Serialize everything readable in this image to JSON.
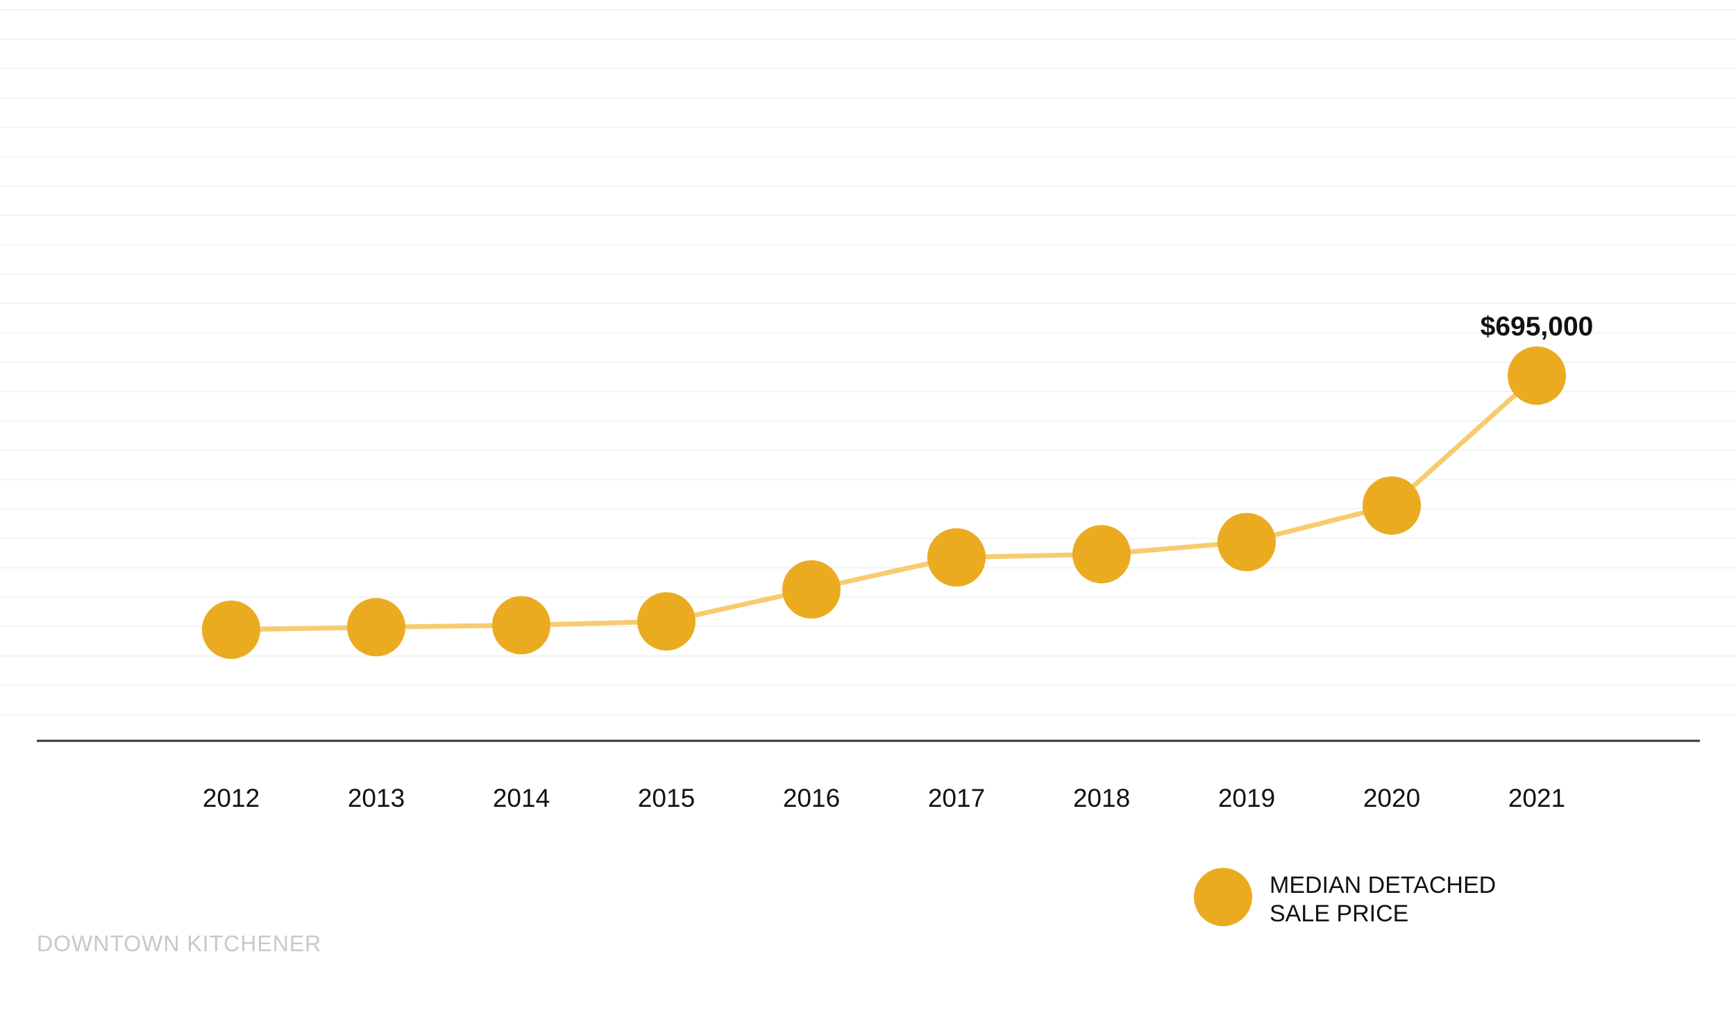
{
  "chart_data": {
    "type": "line",
    "categories": [
      "2012",
      "2013",
      "2014",
      "2015",
      "2016",
      "2017",
      "2018",
      "2019",
      "2020",
      "2021"
    ],
    "series": [
      {
        "name": "MEDIAN DETACHED SALE PRICE",
        "values": [
          298000,
          302000,
          305000,
          311000,
          361000,
          411000,
          416000,
          435000,
          492000,
          695000
        ]
      }
    ],
    "data_labels": [
      {
        "index": 9,
        "text": "$695,000"
      }
    ],
    "legend": {
      "lines": [
        "MEDIAN DETACHED",
        "SALE PRICE"
      ],
      "position": "bottom-right"
    },
    "grid": true,
    "source": "DOWNTOWN KITCHENER",
    "colors": {
      "marker": "#EBAB21",
      "line": "#F7CC70",
      "axis": "#333333",
      "grid": "#f3f3f3",
      "text": "#111111",
      "source": "#c8c8c8"
    }
  }
}
